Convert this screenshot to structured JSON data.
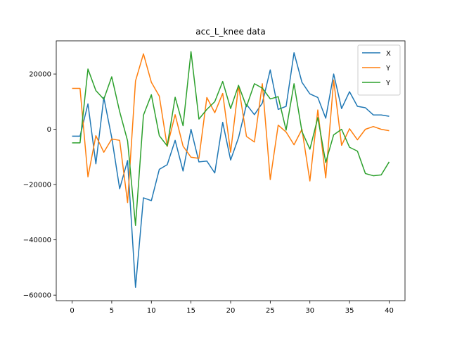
{
  "chart_data": {
    "type": "line",
    "title": "acc_L_knee data",
    "xlabel": "",
    "ylabel": "",
    "xlim": [
      -2,
      42
    ],
    "ylim": [
      -62000,
      32000
    ],
    "xticks": [
      0,
      5,
      10,
      15,
      20,
      25,
      30,
      35,
      40
    ],
    "yticks": [
      -60000,
      -40000,
      -20000,
      0,
      20000
    ],
    "grid": false,
    "legend_position": "top-right",
    "x": [
      0,
      1,
      2,
      3,
      4,
      5,
      6,
      7,
      8,
      9,
      10,
      11,
      12,
      13,
      14,
      15,
      16,
      17,
      18,
      19,
      20,
      21,
      22,
      23,
      24,
      25,
      26,
      27,
      28,
      29,
      30,
      31,
      32,
      33,
      34,
      35,
      36,
      37,
      38,
      39,
      40
    ],
    "series": [
      {
        "name": "X",
        "color": "#1f77b4",
        "values": [
          -2500,
          -2500,
          9200,
          -12500,
          11500,
          -3000,
          -21500,
          -11300,
          -57200,
          -24800,
          -25800,
          -14500,
          -12800,
          -4000,
          -15100,
          0,
          -11800,
          -11500,
          -15800,
          2500,
          -11100,
          -3000,
          9000,
          5300,
          9500,
          21500,
          7200,
          8300,
          27700,
          17000,
          12800,
          11500,
          4000,
          20000,
          7500,
          13600,
          8300,
          7800,
          5200,
          5200,
          4700
        ]
      },
      {
        "name": "Y",
        "color": "#ff7f0e",
        "values": [
          14800,
          14800,
          -17200,
          -2300,
          -8300,
          -3500,
          -4000,
          -26500,
          17500,
          27300,
          17000,
          12000,
          -6200,
          5300,
          -6100,
          -10100,
          -10500,
          11500,
          6000,
          13000,
          -8300,
          15700,
          -2600,
          -4600,
          16500,
          -18200,
          1500,
          -1000,
          -5600,
          0,
          -18700,
          7000,
          -17600,
          17800,
          -5800,
          200,
          -3800,
          0,
          1000,
          0,
          -500
        ]
      },
      {
        "name": "Y",
        "color": "#2ca02c",
        "values": [
          -4900,
          -4900,
          21800,
          14000,
          10900,
          19000,
          6400,
          -4200,
          -34800,
          5100,
          12500,
          -2300,
          -6000,
          11600,
          1300,
          28100,
          3700,
          7200,
          10000,
          17300,
          7500,
          15900,
          8200,
          16500,
          14900,
          11000,
          11800,
          -300,
          16500,
          -800,
          -7200,
          4200,
          -12000,
          -2000,
          0,
          -6500,
          -7900,
          -16000,
          -16800,
          -16500,
          -11800
        ]
      }
    ]
  }
}
